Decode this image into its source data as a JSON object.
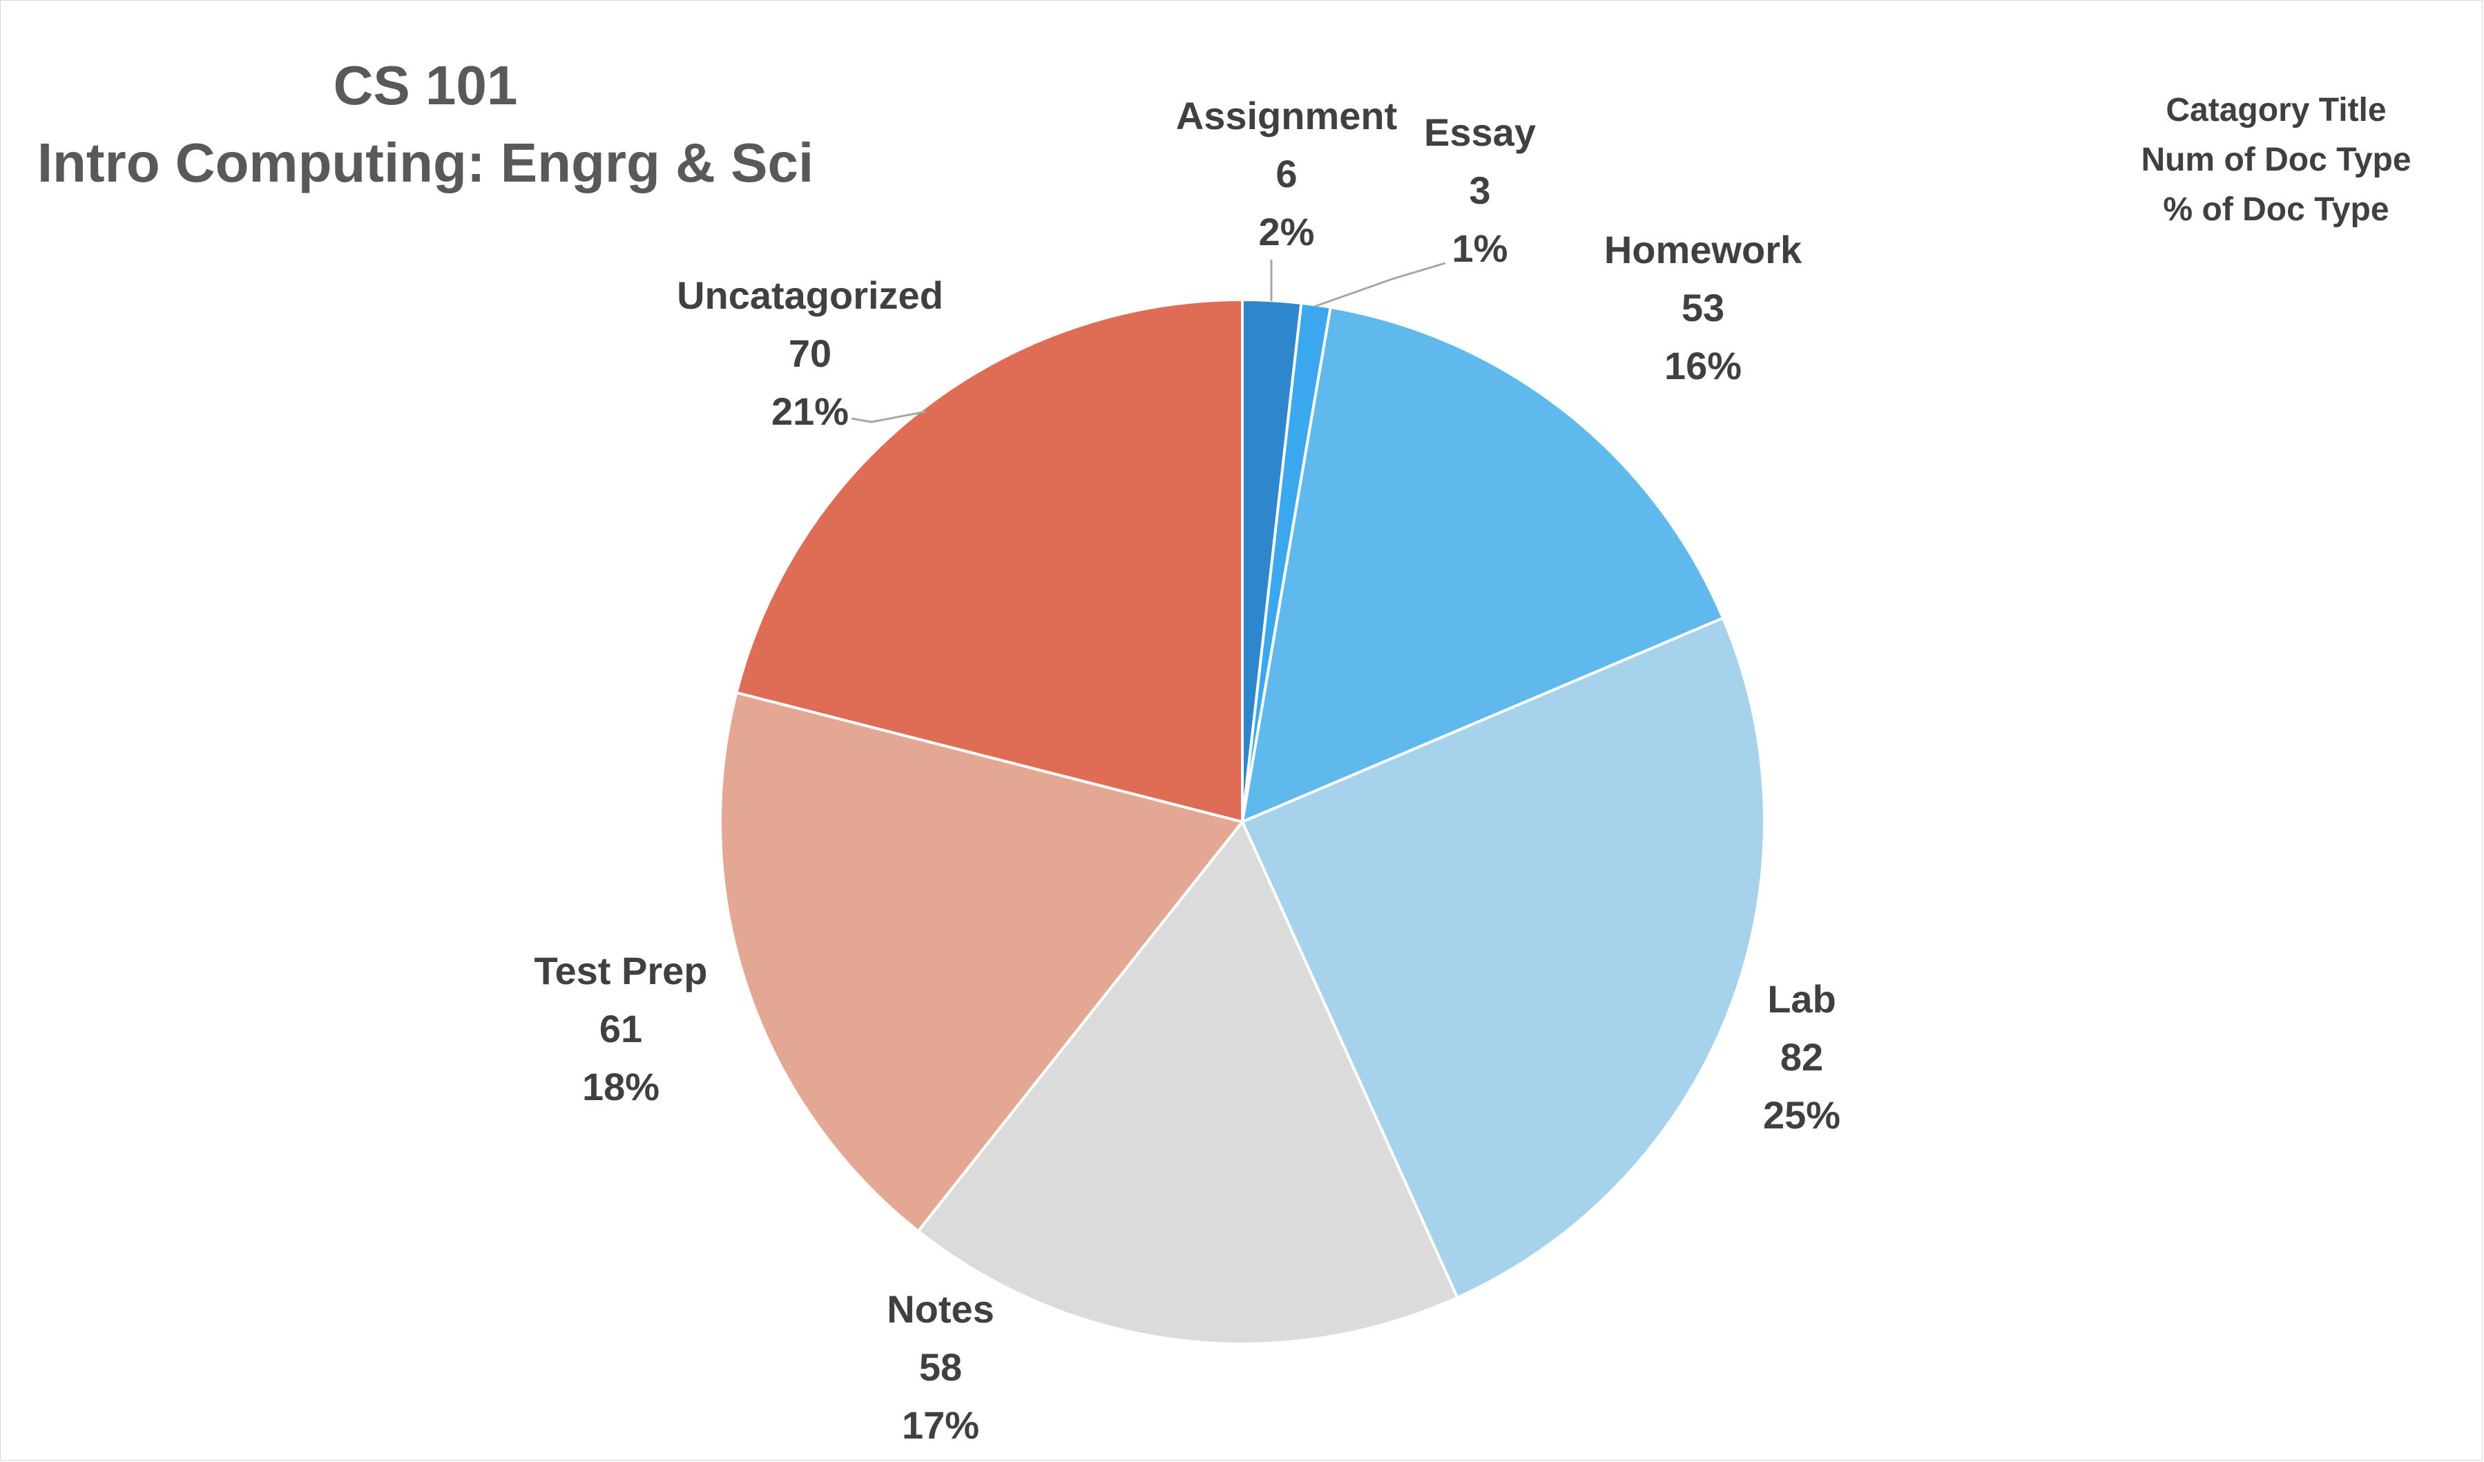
{
  "chart_data": {
    "type": "pie",
    "title": [
      "CS 101",
      "Intro Computing: Engrg & Sci"
    ],
    "legend_note": [
      "Catagory Title",
      "Num of Doc Type",
      "% of Doc Type"
    ],
    "slices": [
      {
        "label": "Assignment",
        "value": 6,
        "percent": "2%",
        "color": "#2e86cc"
      },
      {
        "label": "Essay",
        "value": 3,
        "percent": "1%",
        "color": "#3ba7ee"
      },
      {
        "label": "Homework",
        "value": 53,
        "percent": "16%",
        "color": "#5fb9ec"
      },
      {
        "label": "Lab",
        "value": 82,
        "percent": "25%",
        "color": "#a6d2eb"
      },
      {
        "label": "Notes",
        "value": 58,
        "percent": "17%",
        "color": "#dbdbdb"
      },
      {
        "label": "Test Prep",
        "value": 61,
        "percent": "18%",
        "color": "#e3a793"
      },
      {
        "label": "Uncatagorized",
        "value": 70,
        "percent": "21%",
        "color": "#df6c55"
      }
    ]
  }
}
